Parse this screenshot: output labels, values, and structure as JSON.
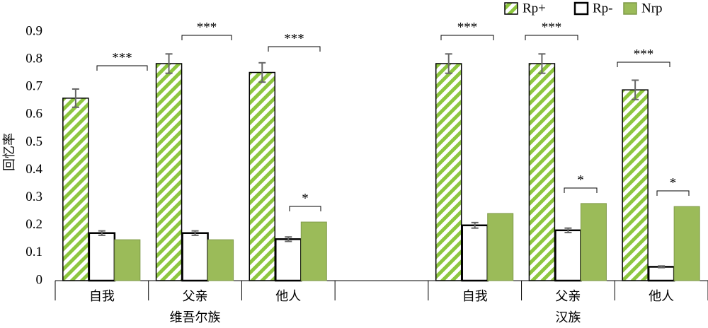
{
  "chart_data": {
    "type": "bar",
    "y_label": "回忆率",
    "categories": [
      "自我",
      "父亲",
      "他人",
      null,
      "自我",
      "父亲",
      "他人"
    ],
    "groups": [
      "维吾尔族",
      "汉族"
    ],
    "series": [
      {
        "name": "Rp+",
        "color": "#8dc63f",
        "values": [
          0.66,
          0.785,
          0.753,
          null,
          0.785,
          0.785,
          0.69
        ],
        "errors": [
          0.033,
          0.035,
          0.035,
          null,
          0.035,
          0.035,
          0.035
        ]
      },
      {
        "name": "Rp-",
        "color": "#ffffff",
        "values": [
          0.172,
          0.172,
          0.15,
          null,
          0.2,
          0.182,
          0.05
        ],
        "errors": [
          0.008,
          0.008,
          0.008,
          null,
          0.01,
          0.008,
          0.003
        ]
      },
      {
        "name": "Nrp",
        "color": "#9bbb59",
        "values": [
          0.148,
          0.148,
          0.212,
          null,
          0.243,
          0.279,
          0.268
        ]
      }
    ],
    "annotations": [
      "***",
      "***",
      "***",
      "*",
      "***",
      "***",
      "*",
      "***",
      "*"
    ],
    "ylim": [
      0,
      0.9
    ],
    "yticks": [
      0,
      0.1,
      0.2,
      0.3,
      0.4,
      0.5,
      0.6,
      0.7,
      0.8,
      0.9
    ]
  }
}
